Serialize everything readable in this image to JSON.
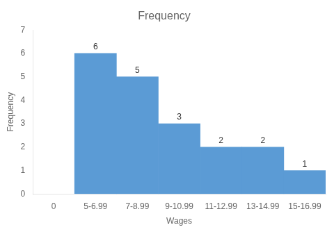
{
  "chart_data": {
    "type": "bar",
    "title": "Frequency",
    "xlabel": "Wages",
    "ylabel": "Frequency",
    "categories": [
      "0",
      "5-6.99",
      "7-8.99",
      "9-10.99",
      "11-12.99",
      "13-14.99",
      "15-16.99"
    ],
    "values": [
      null,
      6,
      5,
      3,
      2,
      2,
      1
    ],
    "color": "#5B9BD5",
    "ylim": [
      0,
      7
    ],
    "yticks": [
      0,
      1,
      2,
      3,
      4,
      5,
      6,
      7
    ],
    "grid": false,
    "data_labels": true
  }
}
